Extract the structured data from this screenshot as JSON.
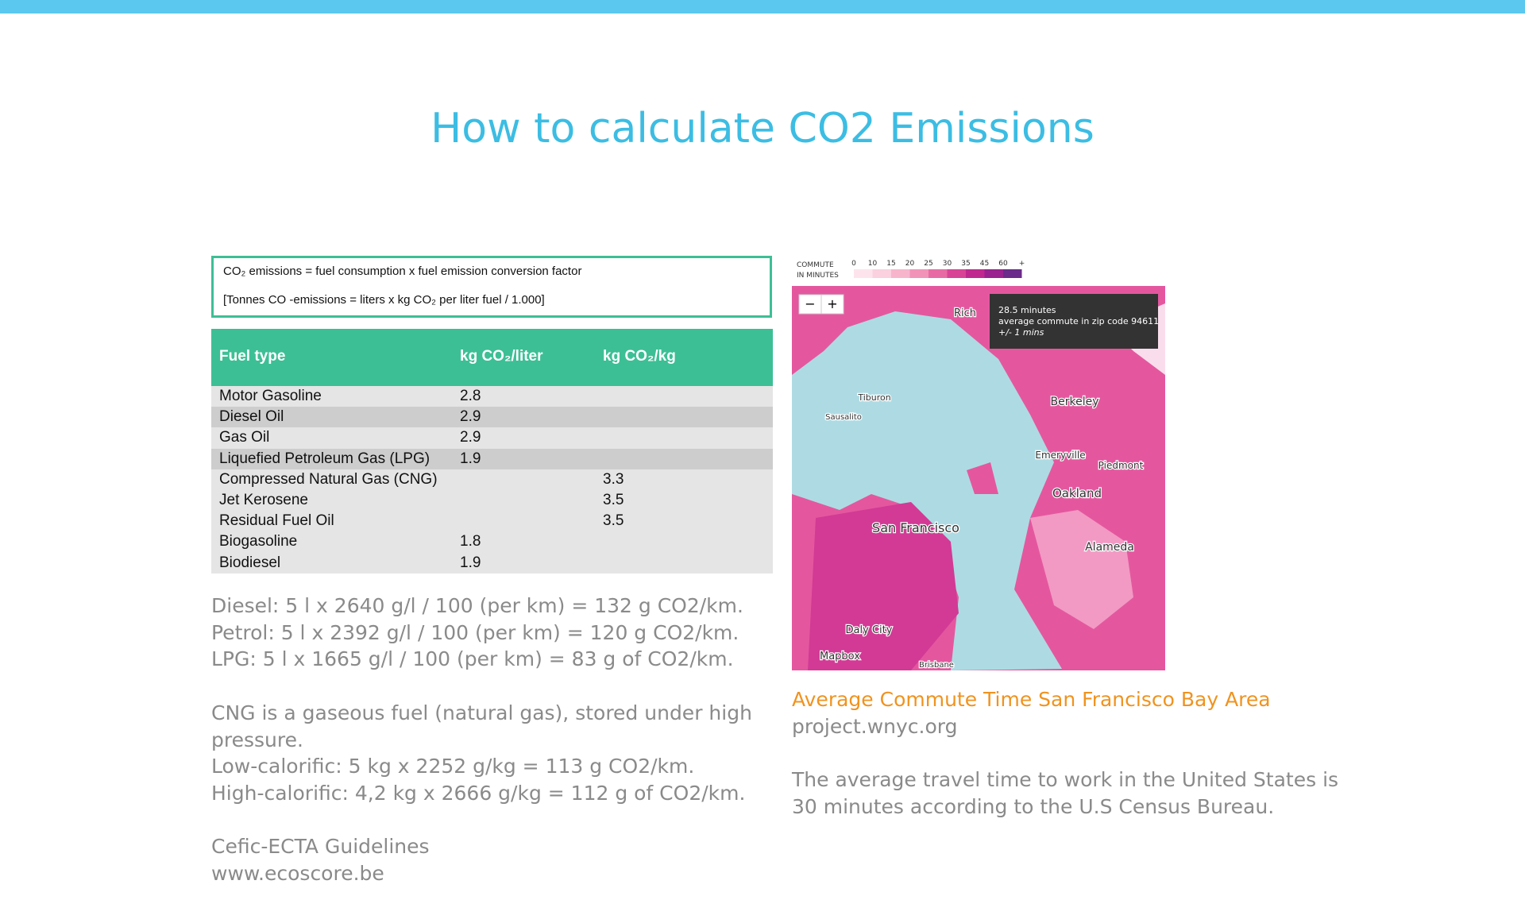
{
  "title": "How to calculate CO2 Emissions",
  "formula_box": {
    "line1": "CO₂ emissions = fuel consumption x fuel emission conversion factor",
    "line2": "[Tonnes CO -emissions = liters x kg CO₂ per liter fuel / 1.000]"
  },
  "table": {
    "header": [
      "Fuel type",
      "kg CO₂/liter",
      "kg CO₂/kg"
    ],
    "rows": [
      [
        "Motor Gasoline",
        2.8,
        null
      ],
      [
        "Diesel Oil",
        2.9,
        null
      ],
      [
        "Gas Oil",
        2.9,
        null
      ],
      [
        "Liquefied Petroleum Gas (LPG)",
        1.9,
        null
      ],
      [
        "Compressed Natural Gas (CNG)",
        null,
        3.3
      ],
      [
        "Jet Kerosene",
        null,
        3.5
      ],
      [
        "Residual Fuel Oil",
        null,
        3.5
      ],
      [
        "Biogasoline",
        1.8,
        null
      ],
      [
        "Biodiesel",
        1.9,
        null
      ]
    ]
  },
  "notes": [
    [
      "Diesel: 5 l x 2640 g/l / 100 (per km) = 132 g CO2/km.",
      "Petrol: 5 l x 2392 g/l / 100 (per km) = 120 g CO2/km.",
      "LPG: 5 l x 1665 g/l / 100 (per km) = 83 g of CO2/km."
    ],
    [
      "CNG is a gaseous fuel (natural gas), stored under high",
      "pressure.",
      "Low-calorific: 5 kg x 2252 g/kg = 113 g CO2/km.",
      "High-calorific: 4,2 kg x 2666 g/kg = 112 g of CO2/km."
    ],
    [
      "Cefic-ECTA Guidelines",
      "www.ecoscore.be"
    ]
  ],
  "map": {
    "legend_title": [
      "COMMUTE",
      "IN MINUTES"
    ],
    "legend_ticks": [
      "0",
      "10",
      "15",
      "20",
      "25",
      "30",
      "35",
      "45",
      "60",
      "+"
    ],
    "zoom": [
      "−",
      "+"
    ],
    "tooltip": [
      "28.5 minutes",
      "average commute in zip code 94611",
      "+/- 1 mins"
    ],
    "labels": [
      "Rich",
      "Berkeley",
      "Tiburon",
      "Sausalito",
      "Emeryville",
      "Piedmont",
      "Oakland",
      "San Francisco",
      "Alameda",
      "Daly City",
      "Brisbane",
      "Mapbox"
    ]
  },
  "caption": {
    "title": "Average Commute Time San Francisco Bay Area",
    "source": "project.wnyc.org",
    "text": [
      "The average travel time to work in the United States is",
      "30 minutes according to the U.S Census Bureau."
    ]
  }
}
